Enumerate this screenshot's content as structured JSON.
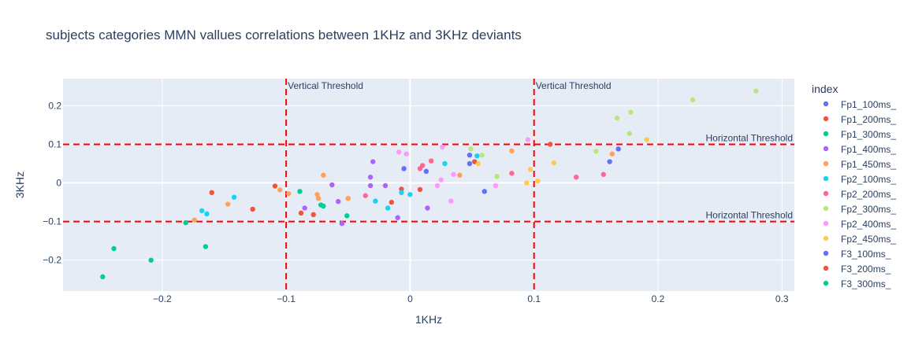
{
  "chart_data": {
    "type": "scatter",
    "title": "subjects categories MMN vallues correlations between 1KHz and 3KHz deviants",
    "xlabel": "1KHz",
    "ylabel": "3KHz",
    "xlim": [
      -0.28,
      0.31
    ],
    "ylim": [
      -0.28,
      0.27
    ],
    "xticks": [
      -0.2,
      -0.1,
      0,
      0.1,
      0.2,
      0.3
    ],
    "xtick_labels": [
      "−0.2",
      "−0.1",
      "0",
      "0.1",
      "0.2",
      "0.3"
    ],
    "yticks": [
      -0.2,
      -0.1,
      0,
      0.1,
      0.2
    ],
    "ytick_labels": [
      "−0.2",
      "−0.1",
      "0",
      "0.1",
      "0.2"
    ],
    "grid": true,
    "legend_title": "index",
    "legend_position": "right",
    "thresholds": {
      "vertical": [
        {
          "x": -0.1,
          "label": "Vertical Threshold"
        },
        {
          "x": 0.1,
          "label": "Vertical Threshold"
        }
      ],
      "horizontal": [
        {
          "y": 0.1,
          "label": "Horizontal Threshold"
        },
        {
          "y": -0.1,
          "label": "Horizontal Threshold"
        }
      ],
      "color": "#ff0000"
    },
    "series": [
      {
        "name": "Fp1_100ms_",
        "color": "#636efa",
        "points": [
          [
            0.048,
            0.072
          ],
          [
            0.161,
            0.055
          ],
          [
            0.168,
            0.088
          ],
          [
            0.013,
            0.03
          ],
          [
            -0.005,
            0.037
          ],
          [
            0.048,
            0.05
          ],
          [
            0.06,
            -0.022
          ]
        ]
      },
      {
        "name": "Fp1_200ms_",
        "color": "#ef553b",
        "points": [
          [
            0.113,
            0.1
          ],
          [
            0.052,
            0.055
          ],
          [
            -0.16,
            -0.025
          ],
          [
            -0.109,
            -0.008
          ],
          [
            -0.127,
            -0.068
          ],
          [
            -0.088,
            -0.078
          ],
          [
            -0.078,
            -0.082
          ],
          [
            -0.015,
            -0.05
          ],
          [
            -0.007,
            -0.016
          ],
          [
            0.008,
            -0.017
          ]
        ]
      },
      {
        "name": "Fp1_300ms_",
        "color": "#00cc96",
        "points": [
          [
            -0.089,
            -0.022
          ],
          [
            -0.072,
            -0.057
          ],
          [
            -0.07,
            -0.06
          ],
          [
            -0.051,
            -0.085
          ],
          [
            -0.165,
            -0.165
          ],
          [
            -0.181,
            -0.103
          ]
        ]
      },
      {
        "name": "Fp1_400ms_",
        "color": "#ab63fa",
        "points": [
          [
            -0.03,
            0.055
          ],
          [
            -0.032,
            0.015
          ],
          [
            -0.063,
            -0.005
          ],
          [
            -0.058,
            -0.048
          ],
          [
            -0.055,
            -0.105
          ],
          [
            -0.032,
            -0.007
          ],
          [
            -0.02,
            -0.007
          ],
          [
            -0.085,
            -0.065
          ],
          [
            -0.01,
            -0.09
          ],
          [
            0.014,
            -0.065
          ]
        ]
      },
      {
        "name": "Fp1_450ms_",
        "color": "#ffa15a",
        "points": [
          [
            -0.105,
            -0.018
          ],
          [
            -0.098,
            -0.028
          ],
          [
            -0.075,
            -0.03
          ],
          [
            -0.074,
            -0.04
          ],
          [
            -0.07,
            0.02
          ],
          [
            -0.05,
            -0.04
          ],
          [
            -0.147,
            -0.055
          ],
          [
            -0.174,
            -0.096
          ],
          [
            0.082,
            0.083
          ],
          [
            0.163,
            0.075
          ],
          [
            0.04,
            0.02
          ]
        ]
      },
      {
        "name": "Fp2_100ms_",
        "color": "#19d3f3",
        "points": [
          [
            -0.142,
            -0.037
          ],
          [
            -0.164,
            -0.08
          ],
          [
            -0.168,
            -0.072
          ],
          [
            -0.028,
            -0.047
          ],
          [
            -0.018,
            -0.065
          ],
          [
            0.0,
            -0.03
          ],
          [
            -0.007,
            -0.025
          ],
          [
            0.028,
            0.05
          ],
          [
            0.054,
            0.07
          ]
        ]
      },
      {
        "name": "Fp2_200ms_",
        "color": "#ff6692",
        "points": [
          [
            -0.036,
            -0.033
          ],
          [
            0.01,
            0.045
          ],
          [
            0.008,
            0.037
          ],
          [
            0.017,
            0.057
          ],
          [
            0.082,
            0.025
          ],
          [
            0.134,
            0.015
          ],
          [
            0.156,
            0.022
          ]
        ]
      },
      {
        "name": "Fp2_300ms_",
        "color": "#b6e880",
        "points": [
          [
            0.279,
            0.238
          ],
          [
            0.228,
            0.215
          ],
          [
            0.178,
            0.183
          ],
          [
            0.167,
            0.168
          ],
          [
            0.177,
            0.128
          ],
          [
            0.15,
            0.082
          ],
          [
            0.049,
            0.088
          ],
          [
            0.058,
            0.072
          ],
          [
            0.07,
            0.017
          ]
        ]
      },
      {
        "name": "Fp2_400ms_",
        "color": "#ff97ff",
        "points": [
          [
            0.095,
            0.112
          ],
          [
            0.026,
            0.093
          ],
          [
            -0.009,
            0.08
          ],
          [
            -0.003,
            0.075
          ],
          [
            0.025,
            0.008
          ],
          [
            0.022,
            -0.007
          ],
          [
            0.035,
            0.022
          ],
          [
            0.033,
            -0.047
          ],
          [
            0.069,
            -0.007
          ]
        ]
      },
      {
        "name": "Fp2_450ms_",
        "color": "#fecb52",
        "points": [
          [
            0.191,
            0.112
          ],
          [
            0.116,
            0.052
          ],
          [
            0.097,
            0.035
          ],
          [
            0.103,
            0.005
          ],
          [
            0.094,
            0.0
          ],
          [
            0.055,
            0.05
          ]
        ]
      }
    ],
    "legend_entries": [
      "Fp1_100ms_",
      "Fp1_200ms_",
      "Fp1_300ms_",
      "Fp1_400ms_",
      "Fp1_450ms_",
      "Fp2_100ms_",
      "Fp2_200ms_",
      "Fp2_300ms_",
      "Fp2_400ms_",
      "Fp2_450ms_",
      "F3_100ms_",
      "F3_200ms_",
      "F3_300ms_"
    ],
    "legend_colors": [
      "#636efa",
      "#ef553b",
      "#00cc96",
      "#ab63fa",
      "#ffa15a",
      "#19d3f3",
      "#ff6692",
      "#b6e880",
      "#ff97ff",
      "#fecb52",
      "#636efa",
      "#ef553b",
      "#00cc96"
    ],
    "extra_series": [
      {
        "name": "F3_300ms_",
        "color": "#00cc96",
        "points": [
          [
            -0.248,
            -0.243
          ],
          [
            -0.239,
            -0.17
          ],
          [
            -0.209,
            -0.2
          ]
        ]
      }
    ]
  }
}
